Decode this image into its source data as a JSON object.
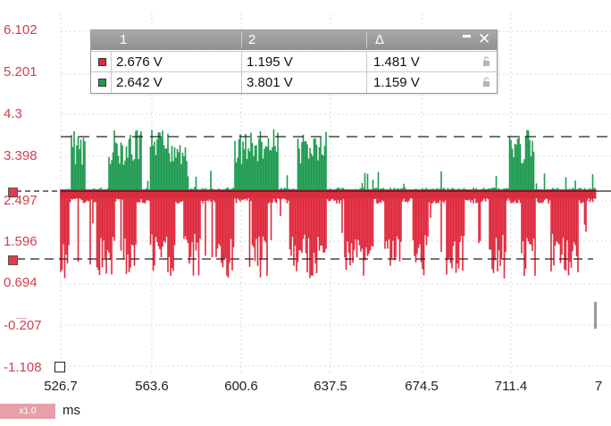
{
  "colors": {
    "channel1": "#e0283c",
    "channel2": "#1e9a50",
    "axis_text": "#d0404e"
  },
  "y_axis": {
    "labels": [
      "6.102",
      "5.201",
      "4.3",
      "3.398",
      "2.497",
      "1.596",
      "0.694",
      "-0.207",
      "-1.108"
    ]
  },
  "x_axis": {
    "labels": [
      "526.7",
      "563.6",
      "600.6",
      "637.5",
      "674.5",
      "711.4",
      "7"
    ],
    "unit": "ms",
    "zoom": "x1.0"
  },
  "cursor_table": {
    "headers": [
      "1",
      "2",
      "Δ"
    ],
    "rows": [
      {
        "channel": "red",
        "c1": "2.676 V",
        "c2": "1.195 V",
        "delta": "1.481 V"
      },
      {
        "channel": "green",
        "c1": "2.642 V",
        "c2": "3.801 V",
        "delta": "1.159 V"
      }
    ],
    "controls": {
      "minimize": "minimize-icon",
      "close": "close-icon",
      "lock": "lock-icon"
    }
  }
}
